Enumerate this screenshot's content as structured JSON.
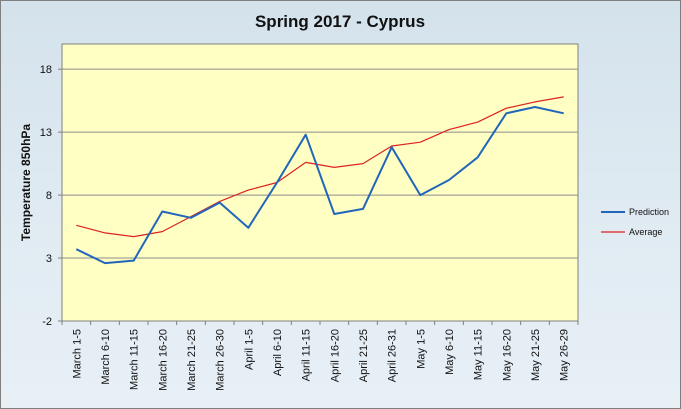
{
  "chart_data": {
    "type": "line",
    "title": "Spring 2017 - Cyprus",
    "xlabel": "",
    "ylabel": "Temperature 850hPa",
    "ylim": [
      -2,
      20
    ],
    "yticks": [
      -2,
      3,
      8,
      13,
      18
    ],
    "grid": true,
    "legend_position": "right",
    "categories": [
      "March 1-5",
      "March 6-10",
      "March 11-15",
      "March 16-20",
      "March 21-25",
      "March 26-30",
      "April 1-5",
      "April 6-10",
      "April 11-15",
      "April 16-20",
      "April 21-25",
      "April 26-31",
      "May 1-5",
      "May 6-10",
      "May 11-15",
      "May 16-20",
      "May 21-25",
      "May 26-29"
    ],
    "series": [
      {
        "name": "Prediction",
        "color": "#2266bb",
        "values": [
          3.7,
          2.6,
          2.8,
          6.7,
          6.2,
          7.4,
          5.4,
          9.0,
          12.8,
          6.5,
          6.9,
          11.8,
          8.0,
          9.2,
          11.0,
          14.5,
          15.0,
          14.5
        ]
      },
      {
        "name": "Average",
        "color": "#dd2222",
        "values": [
          5.6,
          5.0,
          4.7,
          5.1,
          6.3,
          7.5,
          8.4,
          9.0,
          10.6,
          10.2,
          10.5,
          11.9,
          12.2,
          13.2,
          13.8,
          14.9,
          15.4,
          15.8
        ]
      }
    ]
  }
}
